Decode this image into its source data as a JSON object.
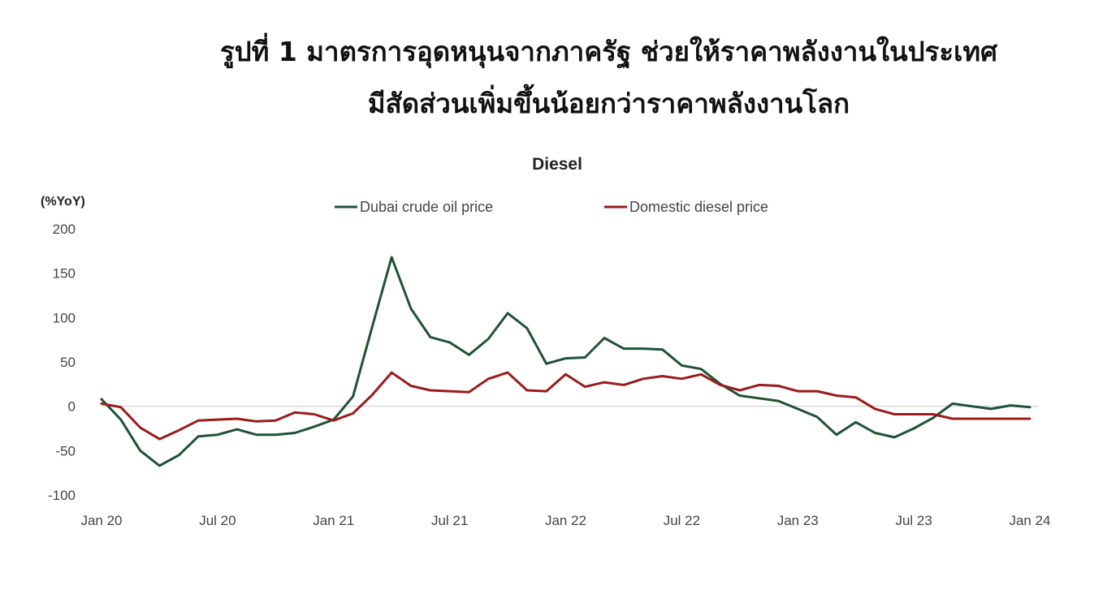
{
  "figure": {
    "title_line1": "รูปที่ 1 มาตรการอุดหนุนจากภาครัฐ ช่วยให้ราคาพลังงานในประเทศ",
    "title_line2": "มีสัดส่วนเพิ่มขึ้นน้อยกว่าราคาพลังงานโลก"
  },
  "chart_data": {
    "type": "line",
    "title": "Diesel",
    "ylabel": "(%YoY)",
    "xlabel": "",
    "ylim": [
      -100,
      200
    ],
    "yticks": [
      200,
      150,
      100,
      50,
      0,
      -50,
      -100
    ],
    "xtick_labels": [
      "Jan 20",
      "Jul 20",
      "Jan 21",
      "Jul 21",
      "Jan 22",
      "Jul 22",
      "Jan 23",
      "Jul 23",
      "Jan 24"
    ],
    "x_start": "Jan 20",
    "x_end": "Jan 24",
    "grid": false,
    "zero_line": true,
    "legend_position": "top",
    "series": [
      {
        "name": "Dubai crude oil price",
        "color": "#1f5234",
        "values": [
          8,
          -15,
          -50,
          -67,
          -55,
          -34,
          -32,
          -26,
          -32,
          -32,
          -30,
          -23,
          -15,
          11,
          90,
          168,
          110,
          78,
          72,
          58,
          76,
          105,
          88,
          48,
          54,
          55,
          77,
          65,
          65,
          64,
          46,
          42,
          25,
          12,
          9,
          6,
          -3,
          -12,
          -32,
          -18,
          -30,
          -35,
          -25,
          -13,
          3,
          0,
          -3,
          1,
          -1
        ]
      },
      {
        "name": "Domestic diesel price",
        "color": "#9b1b1b",
        "values": [
          3,
          -1,
          -24,
          -37,
          -27,
          -16,
          -15,
          -14,
          -17,
          -16,
          -7,
          -9,
          -16,
          -8,
          13,
          38,
          23,
          18,
          17,
          16,
          31,
          38,
          18,
          17,
          36,
          22,
          27,
          24,
          31,
          34,
          31,
          36,
          24,
          18,
          24,
          23,
          17,
          17,
          12,
          10,
          -3,
          -9,
          -9,
          -9,
          -14,
          -14,
          -14,
          -14,
          -14
        ]
      }
    ]
  }
}
